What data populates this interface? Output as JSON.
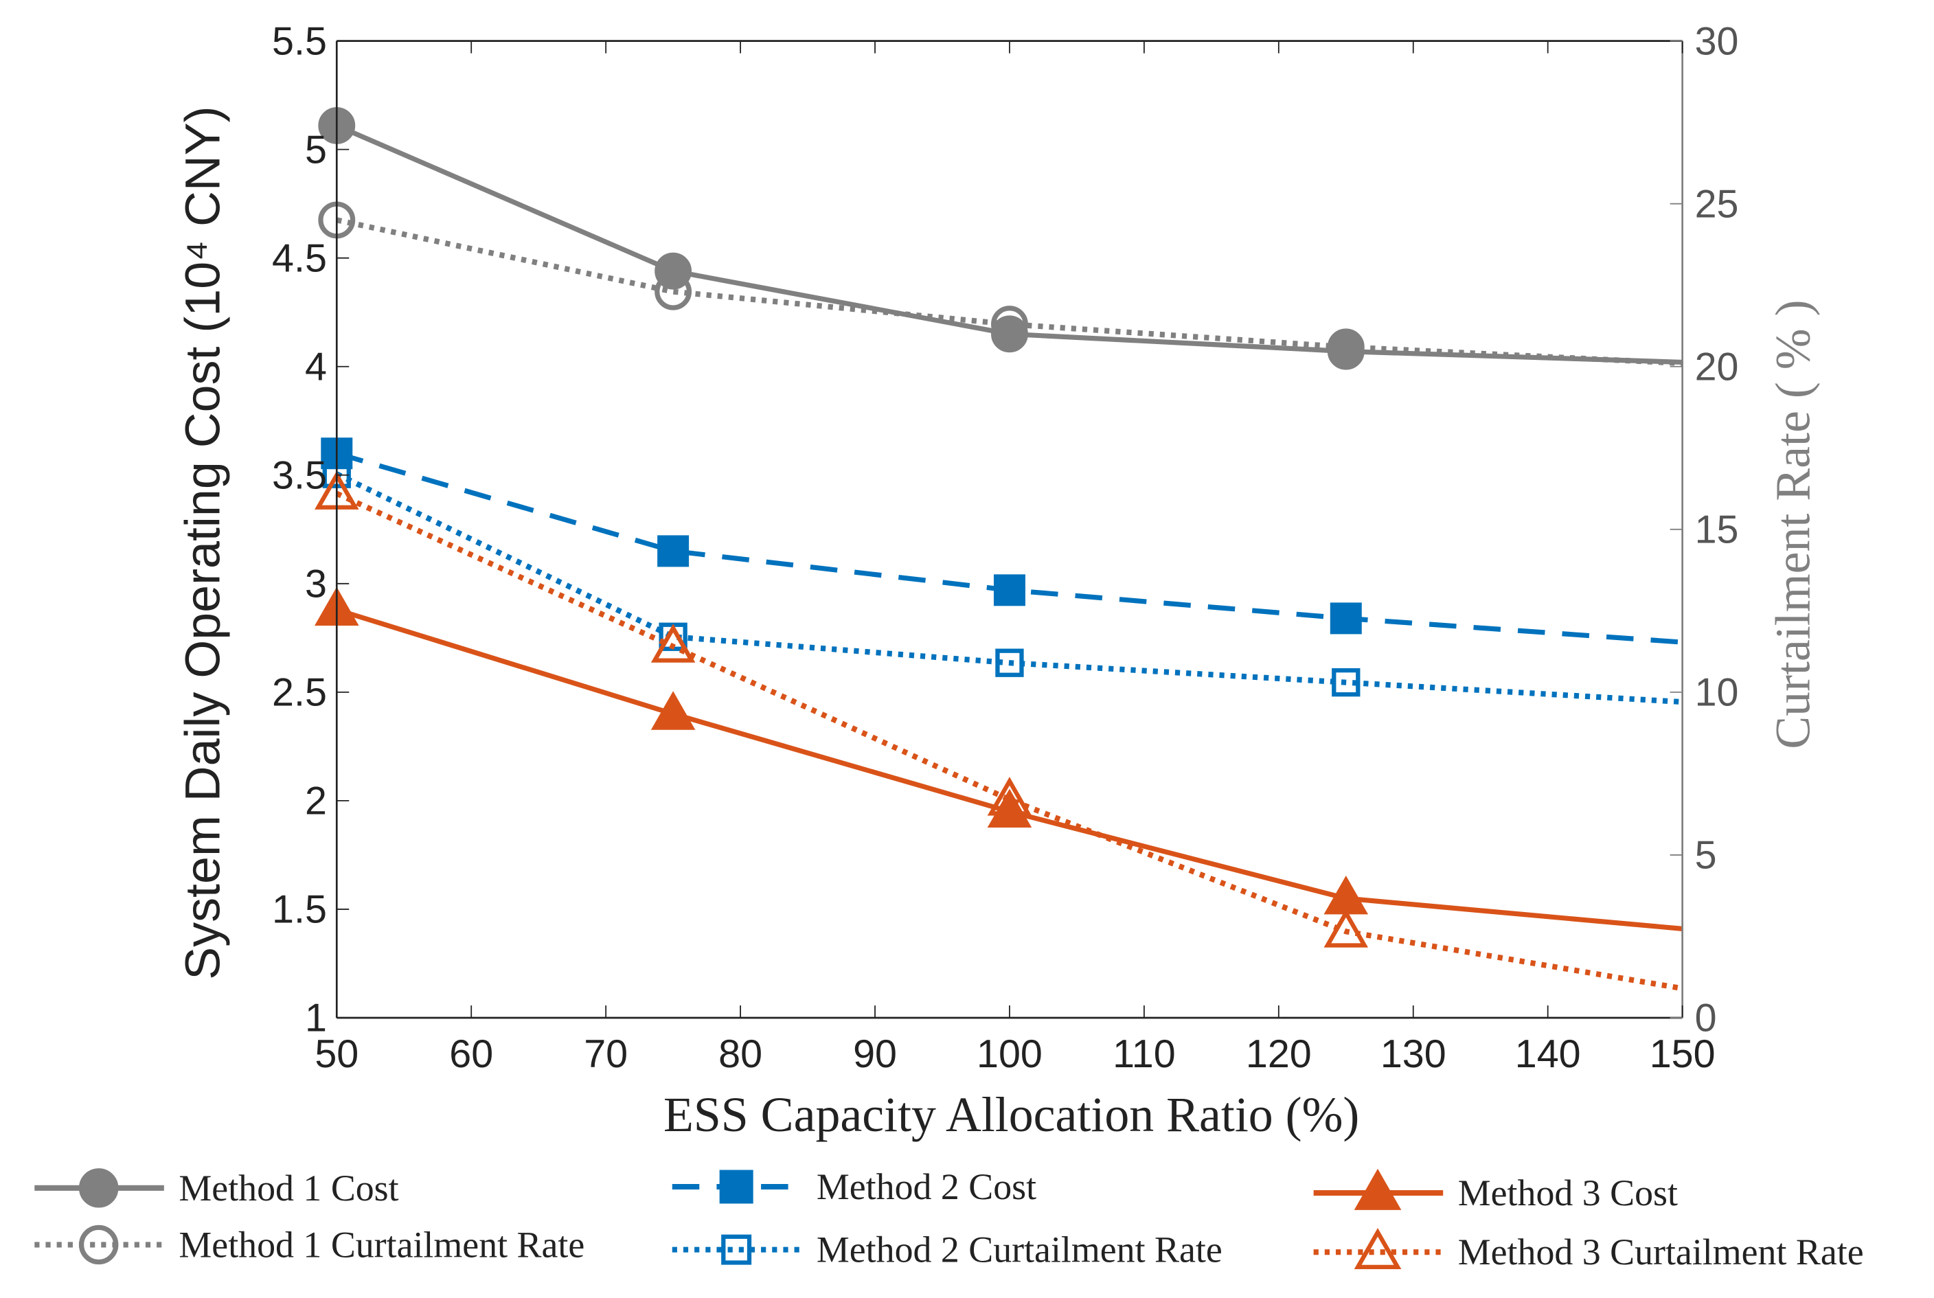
{
  "chart_data": {
    "type": "line",
    "title": "",
    "xlabel": "ESS Capacity Allocation Ratio (%)",
    "ylabel_left": "System Daily Operating Cost  (10⁴ CNY)",
    "ylabel_right": "Curtailment Rate ( % )",
    "xlim": [
      50,
      150
    ],
    "ylim_left": [
      1,
      5.5
    ],
    "ylim_right": [
      0,
      30
    ],
    "x_ticks": [
      "50",
      "60",
      "70",
      "80",
      "90",
      "100",
      "110",
      "120",
      "130",
      "140",
      "150"
    ],
    "y_left_ticks": [
      "1",
      "1.5",
      "2",
      "2.5",
      "3",
      "3.5",
      "4",
      "4.5",
      "5",
      "5.5"
    ],
    "y_right_ticks": [
      "0",
      "5",
      "10",
      "15",
      "20",
      "25",
      "30"
    ],
    "grid": false,
    "legend_position": "bottom",
    "x": [
      50,
      75,
      100,
      125,
      150
    ],
    "series": [
      {
        "name": "Method 1 Cost",
        "axis": "left",
        "values": [
          5.11,
          4.44,
          4.15,
          4.07,
          4.02
        ],
        "color": "#808080",
        "style": "solid",
        "marker": "circle-filled"
      },
      {
        "name": "Method 1 Curtailment Rate",
        "axis": "right",
        "values": [
          24.5,
          22.3,
          21.3,
          20.6,
          20.1
        ],
        "color": "#808080",
        "style": "dotted",
        "marker": "circle-open"
      },
      {
        "name": "Method 2 Cost",
        "axis": "left",
        "values": [
          3.6,
          3.15,
          2.97,
          2.84,
          2.73
        ],
        "color": "#0072BD",
        "style": "dashed",
        "marker": "square-filled"
      },
      {
        "name": "Method 2 Curtailment Rate",
        "axis": "right",
        "values": [
          16.7,
          11.7,
          10.9,
          10.3,
          9.7
        ],
        "color": "#0072BD",
        "style": "dotted",
        "marker": "square-open"
      },
      {
        "name": "Method 3 Cost",
        "axis": "left",
        "values": [
          2.88,
          2.4,
          1.95,
          1.55,
          1.41
        ],
        "color": "#D95319",
        "style": "solid",
        "marker": "triangle-filled"
      },
      {
        "name": "Method 3 Curtailment Rate",
        "axis": "right",
        "values": [
          16.1,
          11.4,
          6.7,
          2.65,
          0.9
        ],
        "color": "#D95319",
        "style": "dotted",
        "marker": "triangle-open"
      }
    ]
  }
}
